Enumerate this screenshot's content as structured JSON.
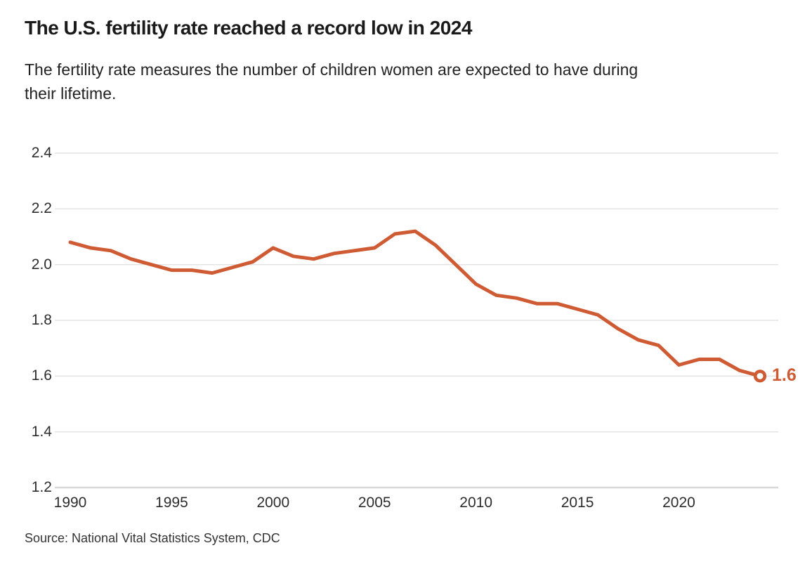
{
  "header": {
    "title": "The U.S. fertility rate reached a record low in 2024",
    "subtitle": "The fertility rate measures the number of children women are expected to have during\ntheir lifetime."
  },
  "chart_data": {
    "type": "line",
    "title": "The U.S. fertility rate reached a record low in 2024",
    "subtitle": "The fertility rate measures the number of children women are expected to have during their lifetime.",
    "xlabel": "",
    "ylabel": "",
    "x": [
      1990,
      1991,
      1992,
      1993,
      1994,
      1995,
      1996,
      1997,
      1998,
      1999,
      2000,
      2001,
      2002,
      2003,
      2004,
      2005,
      2006,
      2007,
      2008,
      2009,
      2010,
      2011,
      2012,
      2013,
      2014,
      2015,
      2016,
      2017,
      2018,
      2019,
      2020,
      2021,
      2022,
      2023,
      2024
    ],
    "series": [
      {
        "name": "U.S. fertility rate",
        "values": [
          2.08,
          2.06,
          2.05,
          2.02,
          2.0,
          1.98,
          1.98,
          1.97,
          1.99,
          2.01,
          2.06,
          2.03,
          2.02,
          2.04,
          2.05,
          2.06,
          2.11,
          2.12,
          2.07,
          2.0,
          1.93,
          1.89,
          1.88,
          1.86,
          1.86,
          1.84,
          1.82,
          1.77,
          1.73,
          1.71,
          1.64,
          1.66,
          1.66,
          1.62,
          1.6
        ]
      }
    ],
    "xlim": [
      1990,
      2024
    ],
    "ylim": [
      1.2,
      2.4
    ],
    "yticks": [
      2.4,
      2.2,
      2.0,
      1.8,
      1.6,
      1.4,
      1.2
    ],
    "ytick_labels": [
      "2.4",
      "2.2",
      "2.0",
      "1.8",
      "1.6",
      "1.4",
      "1.2"
    ],
    "xticks": [
      1990,
      1995,
      2000,
      2005,
      2010,
      2015,
      2020
    ],
    "xtick_labels": [
      "1990",
      "1995",
      "2000",
      "2005",
      "2010",
      "2015",
      "2020"
    ],
    "grid": true,
    "legend": "none",
    "line_color": "#cf5b34",
    "gridline_color": "#e4e4e4",
    "baseline_color": "#d8d8d8",
    "end_marker": "open-circle",
    "end_label": "1.6",
    "end_value": 1.6,
    "end_year": 2024
  },
  "footer": {
    "source": "Source: National Vital Statistics System, CDC"
  }
}
